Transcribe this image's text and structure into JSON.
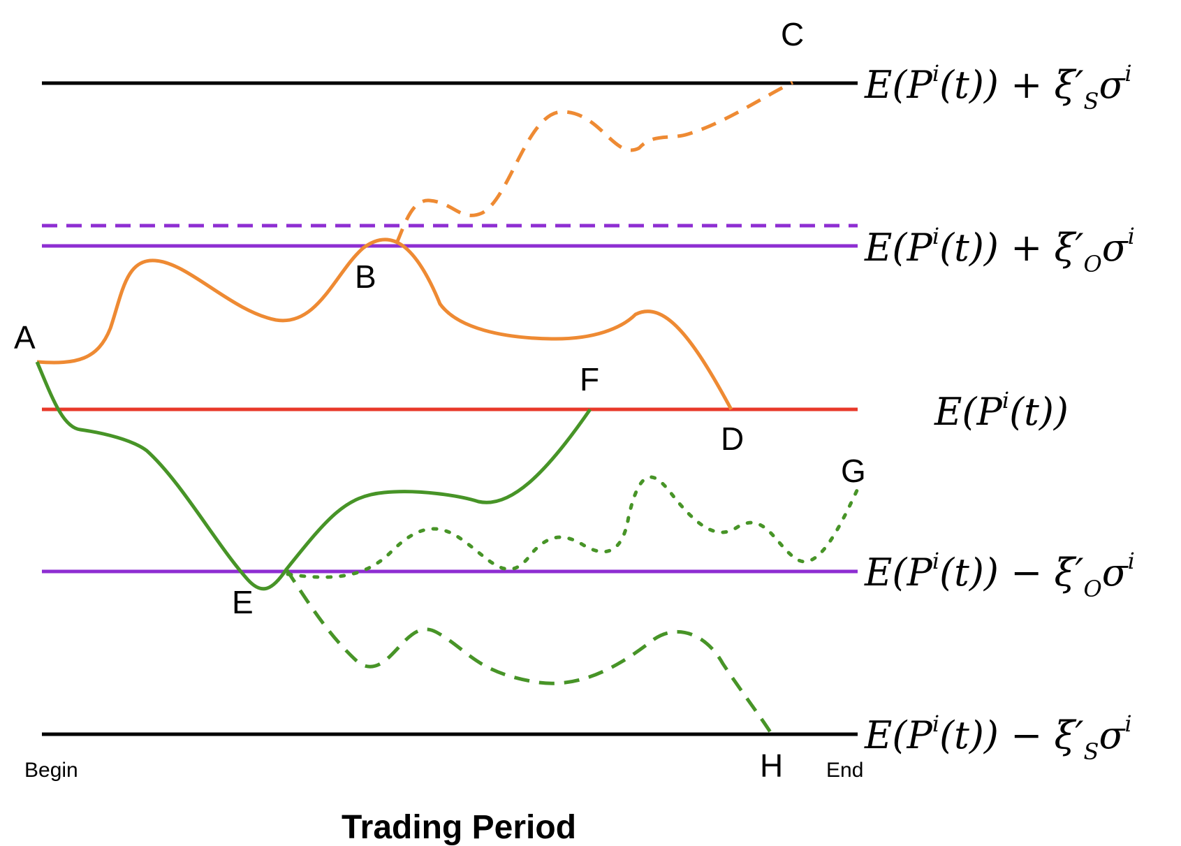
{
  "colors": {
    "stop": "#000000",
    "open": "#8e2ed2",
    "mean": "#e8392a",
    "orange": "#ee8a33",
    "green": "#479427"
  },
  "levels": {
    "upper_stop": {
      "expr": "E(P",
      "sup": "i",
      "mid": "(t)) + ξ′",
      "sub": "S",
      "tail": "σ",
      "tsup": "i"
    },
    "upper_open": {
      "expr": "E(P",
      "sup": "i",
      "mid": "(t)) + ξ′",
      "sub": "O",
      "tail": "σ",
      "tsup": "i"
    },
    "mean": {
      "expr": "E(P",
      "sup": "i",
      "mid": "(t))"
    },
    "lower_open": {
      "expr": "E(P",
      "sup": "i",
      "mid": "(t)) − ξ′",
      "sub": "O",
      "tail": "σ",
      "tsup": "i"
    },
    "lower_stop": {
      "expr": "E(P",
      "sup": "i",
      "mid": "(t)) − ξ′",
      "sub": "S",
      "tail": "σ",
      "tsup": "i"
    }
  },
  "points": {
    "A": "A",
    "B": "B",
    "C": "C",
    "D": "D",
    "E": "E",
    "F": "F",
    "G": "G",
    "H": "H"
  },
  "axis": {
    "begin": "Begin",
    "end": "End",
    "title": "Trading Period"
  }
}
